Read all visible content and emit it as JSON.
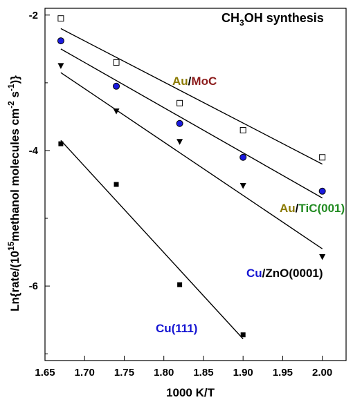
{
  "chart_data": {
    "type": "scatter",
    "title": "CH3OH synthesis",
    "title_parts": {
      "pre": "CH",
      "sub": "3",
      "post": "OH synthesis"
    },
    "xlabel": "1000 K/T",
    "ylabel": "Ln{rate/(10^15 methanol molecules cm^-2 s^-1)}",
    "ylabel_parts": {
      "p1": "Ln{rate/(10",
      "sup1": "15",
      "p2": "methanol molecules cm",
      "sup2": "-2",
      "p3": " s",
      "sup3": "-1",
      "p4": ")}"
    },
    "xlim": [
      1.65,
      2.03
    ],
    "ylim": [
      -7.1,
      -1.9
    ],
    "x_ticks": [
      "1.65",
      "1.70",
      "1.75",
      "1.80",
      "1.85",
      "1.90",
      "1.95",
      "2.00"
    ],
    "y_ticks": [
      "-2",
      "-4",
      "-6"
    ],
    "grid": false,
    "series": [
      {
        "id": "au-moc",
        "label_parts": [
          {
            "text": "Au",
            "color": "#8B7A00"
          },
          {
            "text": "/",
            "color": "#000000"
          },
          {
            "text": "MoC",
            "color": "#8B1A1A"
          }
        ],
        "marker": "open-square",
        "points": [
          [
            1.67,
            -2.05
          ],
          [
            1.74,
            -2.7
          ],
          [
            1.82,
            -3.3
          ],
          [
            1.9,
            -3.7
          ],
          [
            2.0,
            -4.1
          ]
        ],
        "fit": [
          [
            1.67,
            -2.2
          ],
          [
            2.0,
            -4.2
          ]
        ]
      },
      {
        "id": "au-tic",
        "label_parts": [
          {
            "text": "Au",
            "color": "#8B7A00"
          },
          {
            "text": "/",
            "color": "#000000"
          },
          {
            "text": "TiC(001)",
            "color": "#228B22"
          }
        ],
        "marker": "blue-circle",
        "points": [
          [
            1.67,
            -2.38
          ],
          [
            1.74,
            -3.05
          ],
          [
            1.82,
            -3.6
          ],
          [
            1.9,
            -4.1
          ],
          [
            2.0,
            -4.6
          ]
        ],
        "fit": [
          [
            1.67,
            -2.5
          ],
          [
            2.0,
            -4.7
          ]
        ]
      },
      {
        "id": "cu-zno",
        "label_parts": [
          {
            "text": "Cu",
            "color": "#1414D2"
          },
          {
            "text": "/",
            "color": "#000000"
          },
          {
            "text": "ZnO(0001)",
            "color": "#000000"
          }
        ],
        "marker": "filled-triangle-down",
        "points": [
          [
            1.67,
            -2.75
          ],
          [
            1.74,
            -3.42
          ],
          [
            1.82,
            -3.87
          ],
          [
            1.9,
            -4.52
          ],
          [
            2.0,
            -5.57
          ]
        ],
        "fit": [
          [
            1.67,
            -2.85
          ],
          [
            2.0,
            -5.45
          ]
        ]
      },
      {
        "id": "cu-111",
        "label_parts": [
          {
            "text": "Cu(111)",
            "color": "#1414D2"
          }
        ],
        "marker": "filled-square",
        "points": [
          [
            1.67,
            -3.9
          ],
          [
            1.74,
            -4.5
          ],
          [
            1.82,
            -5.98
          ],
          [
            1.9,
            -6.72
          ]
        ],
        "fit": [
          [
            1.67,
            -3.85
          ],
          [
            1.9,
            -6.78
          ]
        ]
      }
    ]
  }
}
